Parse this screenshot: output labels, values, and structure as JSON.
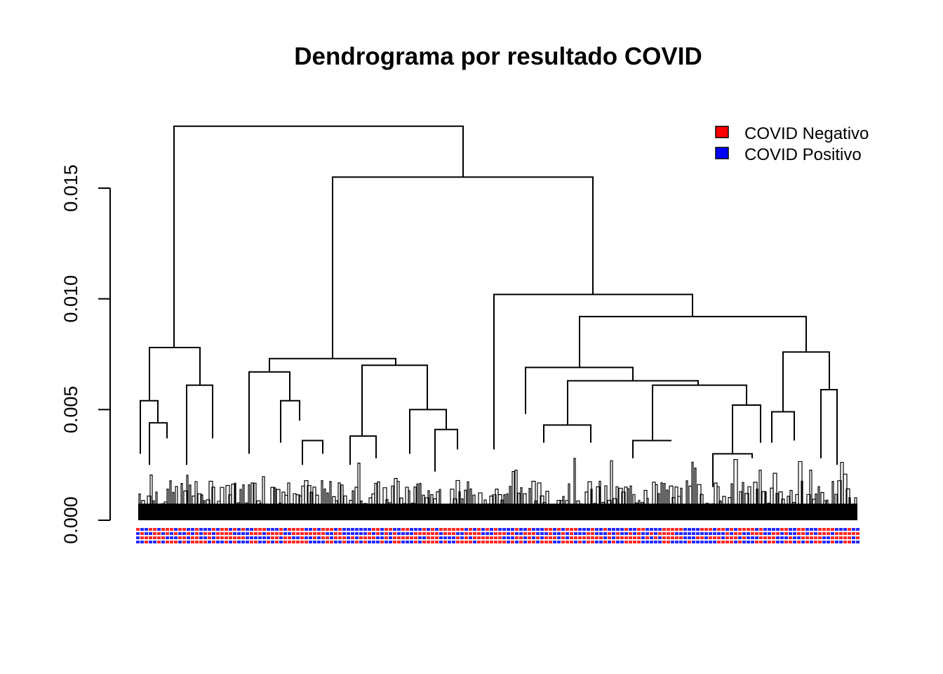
{
  "chart_data": {
    "type": "dendrogram",
    "title": "Dendrograma por resultado COVID",
    "xlabel": "",
    "ylabel": "",
    "ylim": [
      0,
      0.018
    ],
    "yticks": [
      0.0,
      0.005,
      0.01,
      0.015
    ],
    "ytick_labels": [
      "0.000",
      "0.005",
      "0.010",
      "0.015"
    ],
    "legend": {
      "position": "top-right",
      "entries": [
        {
          "label": "COVID Negativo",
          "color": "#ff0000"
        },
        {
          "label": "COVID Positivo",
          "color": "#0000ff"
        }
      ]
    },
    "grid": false,
    "merge_heights": [
      0.0178,
      0.0155,
      0.0102,
      0.0092,
      0.0078,
      0.0076,
      0.0073,
      0.007,
      0.0068,
      0.0067,
      0.0063,
      0.0061,
      0.0059,
      0.0054,
      0.0053,
      0.005,
      0.0049,
      0.0045,
      0.0043,
      0.0041,
      0.0038,
      0.0037,
      0.0036,
      0.0035,
      0.0032,
      0.003
    ],
    "leaf_label_colors": [
      "#ff0000",
      "#0000ff"
    ]
  }
}
